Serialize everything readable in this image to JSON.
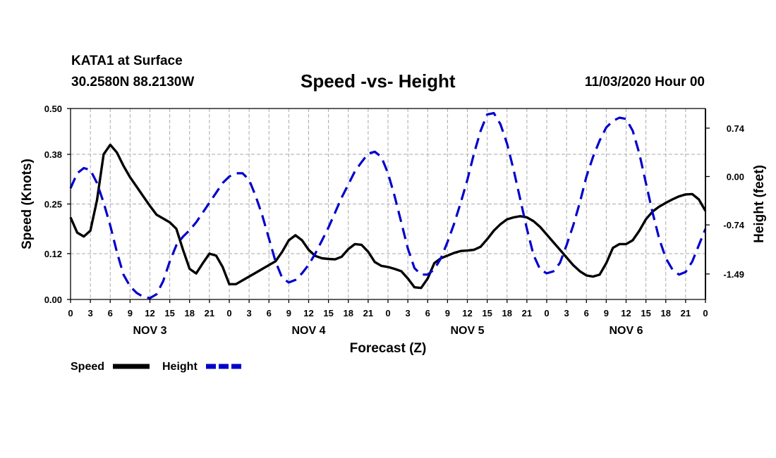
{
  "header": {
    "station": "KATA1 at Surface",
    "coords": "30.2580N 88.2130W",
    "datetime": "11/03/2020 Hour 00"
  },
  "colors": {
    "speed": "#000000",
    "height": "#0000cc",
    "grid": "#aaaaaa"
  },
  "chart_data": {
    "type": "line",
    "title": "Speed -vs- Height",
    "xlabel": "Forecast (Z)",
    "ylabel": "Speed (Knots)",
    "y2label": "Height (feet)",
    "x_range_hours": [
      0,
      96
    ],
    "x_tick_step_hours": 3,
    "x_tick_labels": [
      "0",
      "3",
      "6",
      "9",
      "12",
      "15",
      "18",
      "21",
      "0",
      "3",
      "6",
      "9",
      "12",
      "15",
      "18",
      "21",
      "0",
      "3",
      "6",
      "9",
      "12",
      "15",
      "18",
      "21",
      "0",
      "3",
      "6",
      "9",
      "12",
      "15",
      "18",
      "21",
      "0"
    ],
    "day_labels": [
      {
        "label": "NOV 3",
        "hour": 12
      },
      {
        "label": "NOV 4",
        "hour": 36
      },
      {
        "label": "NOV 5",
        "hour": 60
      },
      {
        "label": "NOV 6",
        "hour": 84
      }
    ],
    "ylim": [
      0,
      0.5
    ],
    "y_ticks": [
      0.0,
      0.12,
      0.25,
      0.38,
      0.5
    ],
    "y_tick_labels": [
      "0.00",
      "0.12",
      "0.25",
      "0.38",
      "0.50"
    ],
    "y2lim": [
      -1.88,
      1.04
    ],
    "y2_ticks": [
      0.74,
      0.0,
      -0.74,
      -1.49
    ],
    "y2_tick_labels": [
      "0.74",
      "0.00",
      "-0.74",
      "-1.49"
    ],
    "series": [
      {
        "name": "Speed",
        "axis": "left",
        "x": [
          0,
          1,
          2,
          3,
          4,
          5,
          6,
          7,
          8,
          9,
          10,
          11,
          12,
          13,
          14,
          15,
          16,
          17,
          18,
          19,
          20,
          21,
          22,
          23,
          24,
          25,
          26,
          27,
          28,
          29,
          30,
          31,
          32,
          33,
          34,
          35,
          36,
          37,
          38,
          39,
          40,
          41,
          42,
          43,
          44,
          45,
          46,
          47,
          48,
          49,
          50,
          51,
          52,
          53,
          54,
          55,
          56,
          57,
          58,
          59,
          60,
          61,
          62,
          63,
          64,
          65,
          66,
          67,
          68,
          69,
          70,
          71,
          72,
          73,
          74,
          75,
          76,
          77,
          78,
          79,
          80,
          81,
          82,
          83,
          84,
          85,
          86,
          87,
          88,
          89,
          90,
          91,
          92,
          93,
          94,
          95,
          96
        ],
        "values": [
          0.215,
          0.175,
          0.165,
          0.18,
          0.26,
          0.38,
          0.405,
          0.385,
          0.35,
          0.32,
          0.295,
          0.27,
          0.245,
          0.222,
          0.212,
          0.202,
          0.185,
          0.13,
          0.08,
          0.068,
          0.095,
          0.12,
          0.115,
          0.085,
          0.04,
          0.04,
          0.05,
          0.06,
          0.07,
          0.08,
          0.09,
          0.1,
          0.125,
          0.155,
          0.168,
          0.155,
          0.13,
          0.114,
          0.108,
          0.106,
          0.105,
          0.112,
          0.132,
          0.145,
          0.143,
          0.125,
          0.098,
          0.088,
          0.085,
          0.08,
          0.074,
          0.055,
          0.032,
          0.03,
          0.055,
          0.095,
          0.108,
          0.115,
          0.122,
          0.127,
          0.128,
          0.13,
          0.138,
          0.158,
          0.18,
          0.197,
          0.21,
          0.215,
          0.218,
          0.215,
          0.205,
          0.19,
          0.17,
          0.15,
          0.13,
          0.11,
          0.09,
          0.074,
          0.063,
          0.06,
          0.065,
          0.095,
          0.135,
          0.145,
          0.145,
          0.155,
          0.18,
          0.21,
          0.23,
          0.243,
          0.253,
          0.262,
          0.27,
          0.275,
          0.276,
          0.262,
          0.232
        ]
      },
      {
        "name": "Height",
        "axis": "right",
        "x": [
          0,
          1,
          2,
          3,
          4,
          5,
          6,
          7,
          8,
          9,
          10,
          11,
          12,
          13,
          14,
          15,
          16,
          17,
          18,
          19,
          20,
          21,
          22,
          23,
          24,
          25,
          26,
          27,
          28,
          29,
          30,
          31,
          32,
          33,
          34,
          35,
          36,
          37,
          38,
          39,
          40,
          41,
          42,
          43,
          44,
          45,
          46,
          47,
          48,
          49,
          50,
          51,
          52,
          53,
          54,
          55,
          56,
          57,
          58,
          59,
          60,
          61,
          62,
          63,
          64,
          65,
          66,
          67,
          68,
          69,
          70,
          71,
          72,
          73,
          74,
          75,
          76,
          77,
          78,
          79,
          80,
          81,
          82,
          83,
          84,
          85,
          86,
          87,
          88,
          89,
          90,
          91,
          92,
          93,
          94,
          95,
          96
        ],
        "values": [
          -0.18,
          0.05,
          0.13,
          0.1,
          -0.1,
          -0.4,
          -0.75,
          -1.15,
          -1.5,
          -1.68,
          -1.78,
          -1.84,
          -1.86,
          -1.8,
          -1.6,
          -1.3,
          -1.05,
          -0.92,
          -0.82,
          -0.7,
          -0.55,
          -0.4,
          -0.25,
          -0.1,
          0.0,
          0.05,
          0.05,
          -0.05,
          -0.3,
          -0.6,
          -0.95,
          -1.3,
          -1.55,
          -1.62,
          -1.58,
          -1.48,
          -1.35,
          -1.18,
          -0.98,
          -0.78,
          -0.55,
          -0.32,
          -0.12,
          0.08,
          0.22,
          0.35,
          0.38,
          0.3,
          0.05,
          -0.3,
          -0.7,
          -1.1,
          -1.4,
          -1.5,
          -1.5,
          -1.42,
          -1.25,
          -1.0,
          -0.72,
          -0.4,
          -0.05,
          0.35,
          0.7,
          0.95,
          0.97,
          0.8,
          0.5,
          0.1,
          -0.35,
          -0.8,
          -1.2,
          -1.42,
          -1.48,
          -1.45,
          -1.32,
          -1.05,
          -0.75,
          -0.4,
          0.0,
          0.3,
          0.55,
          0.75,
          0.85,
          0.9,
          0.88,
          0.7,
          0.35,
          -0.1,
          -0.55,
          -0.95,
          -1.25,
          -1.42,
          -1.5,
          -1.46,
          -1.3,
          -1.05,
          -0.8
        ]
      }
    ],
    "legend": [
      {
        "label": "Speed",
        "style": "solid"
      },
      {
        "label": "Height",
        "style": "dashed"
      }
    ],
    "grid": true,
    "legend_position": "bottom-left"
  }
}
